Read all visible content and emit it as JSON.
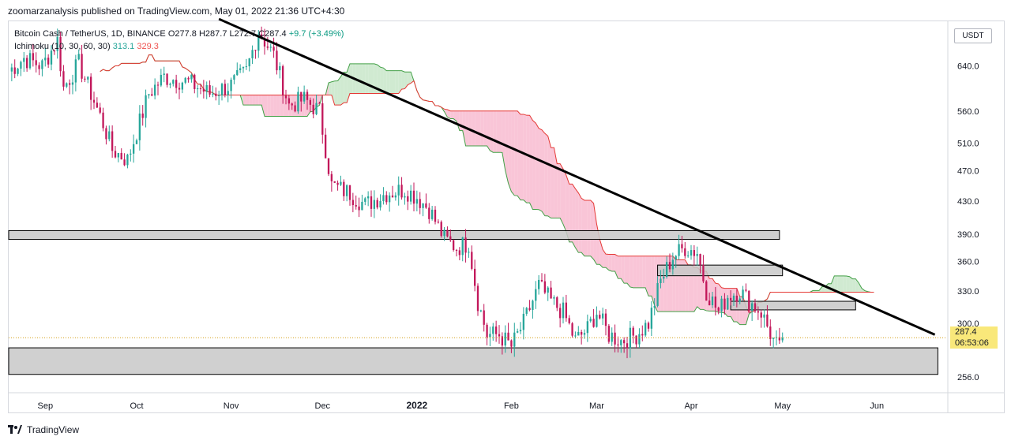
{
  "header": {
    "publisher_line": "zoomarzanalysis published on TradingView.com, May 01, 2022 21:36 UTC+4:30"
  },
  "legend": {
    "symbol": "Bitcoin Cash / TetherUS, 1D, BINANCE",
    "ohlc": "O277.8 H287.7 L272.7 C287.4",
    "change": "+9.7 (+3.49%)",
    "indicator": "Ichimoku (10, 30, 60, 30)",
    "ind_val1": "313.1",
    "ind_val2": "329.3"
  },
  "currency": "USDT",
  "price_tag": {
    "price": "287.4",
    "countdown": "06:53:06"
  },
  "footer": {
    "brand": "TradingView"
  },
  "colors": {
    "up": "#26a69a",
    "down": "#c2185b",
    "cloud_bull": "#c8e6c9",
    "cloud_bear": "#f8bbd0",
    "trendline": "#000000",
    "zone": "#c8c8c8"
  },
  "chart_data": {
    "type": "candlestick",
    "title": "Bitcoin Cash / TetherUS, 1D, BINANCE",
    "y_scale": "log",
    "ylim": [
      245,
      730
    ],
    "y_ticks": [
      "640.0",
      "560.0",
      "510.0",
      "470.0",
      "430.0",
      "390.0",
      "360.0",
      "330.0",
      "300.0",
      "256.0"
    ],
    "y_tick_values": [
      640,
      560,
      510,
      470,
      430,
      390,
      360,
      330,
      300,
      256
    ],
    "x_ticks": [
      "Sep",
      "Oct",
      "Nov",
      "Dec",
      "2022",
      "Feb",
      "Mar",
      "Apr",
      "May",
      "Jun"
    ],
    "x_range": [
      "2021-08-20",
      "2022-06-24"
    ],
    "x_tick_dates": [
      "2021-09-01",
      "2021-10-01",
      "2021-11-01",
      "2021-12-01",
      "2022-01-01",
      "2022-02-01",
      "2022-03-01",
      "2022-04-01",
      "2022-05-01",
      "2022-06-01"
    ],
    "close_path": [
      [
        "2021-08-20",
        630
      ],
      [
        "2021-08-25",
        655
      ],
      [
        "2021-08-31",
        640
      ],
      [
        "2021-09-05",
        690
      ],
      [
        "2021-09-07",
        600
      ],
      [
        "2021-09-12",
        645
      ],
      [
        "2021-09-20",
        540
      ],
      [
        "2021-09-23",
        500
      ],
      [
        "2021-09-28",
        485
      ],
      [
        "2021-10-05",
        590
      ],
      [
        "2021-10-10",
        620
      ],
      [
        "2021-10-18",
        610
      ],
      [
        "2021-10-25",
        590
      ],
      [
        "2021-11-01",
        605
      ],
      [
        "2021-11-06",
        630
      ],
      [
        "2021-11-10",
        710
      ],
      [
        "2021-11-15",
        660
      ],
      [
        "2021-11-20",
        570
      ],
      [
        "2021-11-25",
        580
      ],
      [
        "2021-11-30",
        560
      ],
      [
        "2021-12-04",
        450
      ],
      [
        "2021-12-10",
        440
      ],
      [
        "2021-12-15",
        425
      ],
      [
        "2021-12-22",
        440
      ],
      [
        "2021-12-28",
        445
      ],
      [
        "2022-01-01",
        435
      ],
      [
        "2022-01-05",
        420
      ],
      [
        "2022-01-10",
        385
      ],
      [
        "2022-01-14",
        375
      ],
      [
        "2022-01-18",
        380
      ],
      [
        "2022-01-21",
        320
      ],
      [
        "2022-01-24",
        290
      ],
      [
        "2022-01-28",
        290
      ],
      [
        "2022-02-01",
        280
      ],
      [
        "2022-02-05",
        300
      ],
      [
        "2022-02-10",
        335
      ],
      [
        "2022-02-14",
        320
      ],
      [
        "2022-02-18",
        310
      ],
      [
        "2022-02-22",
        285
      ],
      [
        "2022-02-26",
        295
      ],
      [
        "2022-03-01",
        310
      ],
      [
        "2022-03-05",
        290
      ],
      [
        "2022-03-09",
        285
      ],
      [
        "2022-03-14",
        290
      ],
      [
        "2022-03-18",
        300
      ],
      [
        "2022-03-22",
        340
      ],
      [
        "2022-03-26",
        365
      ],
      [
        "2022-03-30",
        375
      ],
      [
        "2022-04-03",
        370
      ],
      [
        "2022-04-06",
        330
      ],
      [
        "2022-04-10",
        310
      ],
      [
        "2022-04-13",
        325
      ],
      [
        "2022-04-17",
        330
      ],
      [
        "2022-04-20",
        320
      ],
      [
        "2022-04-24",
        310
      ],
      [
        "2022-04-28",
        285
      ],
      [
        "2022-04-30",
        277.8
      ],
      [
        "2022-05-01",
        287.4
      ]
    ],
    "trendline": {
      "start": [
        "2021-10-28",
        735
      ],
      "end": [
        "2022-06-20",
        290
      ]
    },
    "zones": [
      {
        "from": "2021-08-20",
        "to": "2022-04-30",
        "low": 384,
        "high": 394
      },
      {
        "from": "2022-03-21",
        "to": "2022-05-01",
        "low": 345,
        "high": 356
      },
      {
        "from": "2022-04-14",
        "to": "2022-05-25",
        "low": 312,
        "high": 320
      },
      {
        "from": "2021-08-20",
        "to": "2022-06-21",
        "low": 258,
        "high": 279
      }
    ]
  }
}
